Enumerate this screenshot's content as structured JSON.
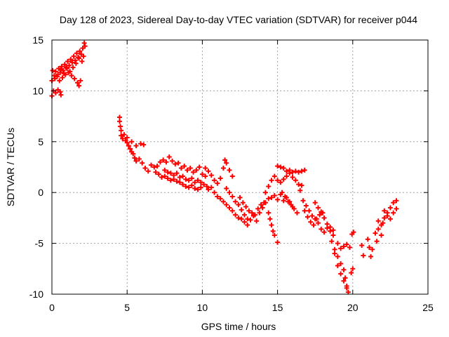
{
  "chart_data": {
    "type": "scatter",
    "title": "Day 128 of 2023, Sidereal Day-to-day VTEC variation (SDTVAR) for receiver p044",
    "xlabel": "GPS time / hours",
    "ylabel": "SDTVAR / TECUs",
    "xlim": [
      0,
      25
    ],
    "ylim": [
      -10,
      15
    ],
    "xticks": [
      0,
      5,
      10,
      15,
      20,
      25
    ],
    "yticks": [
      -10,
      -5,
      0,
      5,
      10,
      15
    ],
    "grid": true,
    "marker": "plus",
    "color": "#ff0000",
    "series": [
      {
        "name": "SDTVAR",
        "points": [
          [
            0.0,
            9.5
          ],
          [
            0.1,
            10.0
          ],
          [
            0.25,
            9.8
          ],
          [
            0.4,
            10.1
          ],
          [
            0.55,
            9.9
          ],
          [
            0.6,
            9.6
          ],
          [
            0.0,
            11.0
          ],
          [
            0.05,
            12.0
          ],
          [
            0.15,
            11.5
          ],
          [
            0.25,
            11.9
          ],
          [
            0.35,
            11.4
          ],
          [
            0.45,
            12.2
          ],
          [
            0.55,
            11.8
          ],
          [
            0.65,
            12.4
          ],
          [
            0.75,
            12.0
          ],
          [
            0.85,
            12.6
          ],
          [
            0.95,
            12.3
          ],
          [
            1.05,
            12.9
          ],
          [
            1.15,
            12.5
          ],
          [
            1.25,
            13.1
          ],
          [
            1.35,
            12.8
          ],
          [
            1.45,
            13.4
          ],
          [
            1.55,
            13.0
          ],
          [
            1.65,
            13.7
          ],
          [
            1.75,
            13.3
          ],
          [
            1.85,
            13.9
          ],
          [
            1.95,
            13.6
          ],
          [
            2.05,
            14.2
          ],
          [
            2.15,
            14.7
          ],
          [
            2.2,
            14.4
          ],
          [
            0.2,
            11.2
          ],
          [
            0.4,
            11.6
          ],
          [
            0.6,
            12.1
          ],
          [
            0.8,
            11.7
          ],
          [
            1.0,
            12.2
          ],
          [
            1.2,
            11.9
          ],
          [
            1.4,
            12.3
          ],
          [
            1.6,
            12.7
          ],
          [
            1.8,
            13.2
          ],
          [
            2.0,
            12.9
          ],
          [
            2.1,
            13.4
          ],
          [
            0.5,
            11.0
          ],
          [
            0.7,
            11.3
          ],
          [
            0.9,
            11.6
          ],
          [
            1.1,
            11.8
          ],
          [
            1.3,
            11.5
          ],
          [
            1.5,
            11.2
          ],
          [
            1.7,
            10.8
          ],
          [
            1.8,
            10.5
          ],
          [
            1.9,
            11.0
          ],
          [
            4.5,
            7.4
          ],
          [
            4.5,
            7.0
          ],
          [
            4.55,
            6.5
          ],
          [
            4.6,
            6.1
          ],
          [
            4.6,
            5.6
          ],
          [
            4.7,
            5.3
          ],
          [
            4.8,
            5.7
          ],
          [
            4.9,
            5.1
          ],
          [
            5.0,
            4.9
          ],
          [
            5.1,
            4.6
          ],
          [
            5.2,
            4.3
          ],
          [
            5.3,
            4.0
          ],
          [
            5.4,
            3.8
          ],
          [
            5.5,
            3.4
          ],
          [
            5.6,
            3.1
          ],
          [
            5.8,
            3.3
          ],
          [
            6.0,
            2.9
          ],
          [
            6.2,
            2.4
          ],
          [
            6.4,
            2.1
          ],
          [
            6.6,
            2.7
          ],
          [
            6.8,
            2.5
          ],
          [
            5.0,
            5.4
          ],
          [
            5.3,
            5.0
          ],
          [
            5.6,
            4.6
          ],
          [
            5.9,
            4.8
          ],
          [
            6.1,
            4.7
          ],
          [
            6.9,
            2.0
          ],
          [
            7.1,
            1.8
          ],
          [
            7.3,
            1.5
          ],
          [
            7.5,
            1.6
          ],
          [
            7.7,
            1.4
          ],
          [
            7.9,
            1.2
          ],
          [
            8.1,
            1.3
          ],
          [
            8.3,
            1.1
          ],
          [
            8.5,
            1.0
          ],
          [
            8.7,
            0.8
          ],
          [
            8.9,
            0.6
          ],
          [
            9.1,
            0.5
          ],
          [
            9.3,
            0.7
          ],
          [
            9.5,
            0.4
          ],
          [
            9.7,
            0.3
          ],
          [
            9.9,
            0.5
          ],
          [
            7.0,
            2.6
          ],
          [
            7.2,
            3.0
          ],
          [
            7.4,
            3.2
          ],
          [
            7.6,
            3.0
          ],
          [
            7.8,
            3.5
          ],
          [
            8.0,
            3.1
          ],
          [
            8.2,
            2.8
          ],
          [
            8.4,
            2.9
          ],
          [
            8.6,
            2.4
          ],
          [
            8.8,
            2.6
          ],
          [
            9.0,
            2.2
          ],
          [
            9.2,
            2.4
          ],
          [
            9.4,
            2.0
          ],
          [
            9.6,
            2.2
          ],
          [
            9.8,
            2.5
          ],
          [
            10.0,
            1.8
          ],
          [
            10.2,
            1.6
          ],
          [
            7.5,
            2.2
          ],
          [
            7.7,
            2.0
          ],
          [
            7.9,
            1.9
          ],
          [
            8.1,
            1.7
          ],
          [
            8.3,
            1.9
          ],
          [
            8.5,
            1.5
          ],
          [
            8.7,
            1.6
          ],
          [
            8.9,
            1.3
          ],
          [
            9.1,
            1.2
          ],
          [
            9.3,
            1.4
          ],
          [
            9.5,
            1.0
          ],
          [
            9.7,
            1.2
          ],
          [
            9.9,
            1.0
          ],
          [
            10.1,
            0.8
          ],
          [
            10.3,
            0.6
          ],
          [
            10.2,
            2.4
          ],
          [
            10.4,
            2.1
          ],
          [
            10.6,
            1.7
          ],
          [
            10.8,
            1.2
          ],
          [
            11.0,
            0.9
          ],
          [
            11.2,
            1.4
          ],
          [
            11.4,
            2.4
          ],
          [
            11.5,
            3.2
          ],
          [
            11.6,
            2.9
          ],
          [
            11.8,
            2.2
          ],
          [
            12.0,
            1.6
          ],
          [
            10.4,
            0.3
          ],
          [
            10.6,
            0.5
          ],
          [
            10.8,
            0.0
          ],
          [
            11.0,
            -0.4
          ],
          [
            11.2,
            -0.6
          ],
          [
            11.4,
            -0.9
          ],
          [
            11.6,
            -1.2
          ],
          [
            11.8,
            -1.5
          ],
          [
            12.0,
            -1.8
          ],
          [
            12.2,
            -2.2
          ],
          [
            12.4,
            -2.5
          ],
          [
            12.6,
            -2.6
          ],
          [
            12.8,
            -2.9
          ],
          [
            13.0,
            -3.2
          ],
          [
            11.6,
            0.4
          ],
          [
            11.8,
            0.0
          ],
          [
            12.0,
            -0.4
          ],
          [
            12.2,
            -0.9
          ],
          [
            12.4,
            -1.2
          ],
          [
            12.6,
            -1.7
          ],
          [
            12.8,
            -2.2
          ],
          [
            13.0,
            -2.6
          ],
          [
            13.2,
            -2.7
          ],
          [
            13.4,
            -2.3
          ],
          [
            12.5,
            -0.5
          ],
          [
            12.7,
            -1.0
          ],
          [
            12.9,
            -1.4
          ],
          [
            13.1,
            -1.8
          ],
          [
            13.3,
            -2.0
          ],
          [
            13.5,
            -2.2
          ],
          [
            13.7,
            -1.6
          ],
          [
            13.9,
            -1.2
          ],
          [
            14.1,
            -1.0
          ],
          [
            13.6,
            -2.8
          ],
          [
            13.8,
            -2.0
          ],
          [
            14.0,
            -1.5
          ],
          [
            14.2,
            -1.0
          ],
          [
            14.4,
            -0.6
          ],
          [
            14.6,
            -0.5
          ],
          [
            14.8,
            -0.3
          ],
          [
            15.0,
            -0.7
          ],
          [
            15.2,
            -0.2
          ],
          [
            15.4,
            -0.8
          ],
          [
            15.6,
            -0.5
          ],
          [
            15.8,
            -0.9
          ],
          [
            16.0,
            -1.4
          ],
          [
            14.4,
            -2.0
          ],
          [
            14.5,
            -2.6
          ],
          [
            14.6,
            -3.2
          ],
          [
            14.7,
            -3.8
          ],
          [
            14.8,
            -4.2
          ],
          [
            15.0,
            -4.9
          ],
          [
            14.2,
            0.0
          ],
          [
            14.4,
            0.6
          ],
          [
            14.6,
            1.2
          ],
          [
            14.8,
            1.6
          ],
          [
            15.0,
            1.2
          ],
          [
            15.2,
            1.0
          ],
          [
            15.4,
            1.3
          ],
          [
            15.6,
            1.6
          ],
          [
            15.8,
            1.9
          ],
          [
            16.0,
            1.5
          ],
          [
            16.2,
            1.2
          ],
          [
            16.4,
            0.8
          ],
          [
            16.6,
            0.7
          ],
          [
            15.0,
            2.6
          ],
          [
            15.2,
            2.5
          ],
          [
            15.4,
            2.4
          ],
          [
            15.6,
            2.1
          ],
          [
            15.8,
            2.2
          ],
          [
            16.0,
            2.0
          ],
          [
            16.2,
            2.1
          ],
          [
            16.4,
            2.0
          ],
          [
            16.6,
            2.1
          ],
          [
            16.8,
            2.2
          ],
          [
            15.3,
            0.0
          ],
          [
            15.5,
            -0.4
          ],
          [
            15.7,
            -0.9
          ],
          [
            15.9,
            -1.2
          ],
          [
            16.1,
            -1.6
          ],
          [
            16.3,
            -2.0
          ],
          [
            16.5,
            0.2
          ],
          [
            16.7,
            -0.8
          ],
          [
            16.9,
            -1.3
          ],
          [
            17.1,
            -1.8
          ],
          [
            17.3,
            -2.3
          ],
          [
            17.5,
            -2.6
          ],
          [
            17.7,
            -3.0
          ],
          [
            17.9,
            -3.6
          ],
          [
            18.1,
            -3.9
          ],
          [
            18.3,
            -3.5
          ],
          [
            18.5,
            -3.8
          ],
          [
            18.7,
            -4.2
          ],
          [
            16.8,
            -1.8
          ],
          [
            17.0,
            -2.4
          ],
          [
            17.2,
            -2.9
          ],
          [
            17.4,
            -3.2
          ],
          [
            17.6,
            -2.6
          ],
          [
            17.8,
            -2.2
          ],
          [
            18.0,
            -2.0
          ],
          [
            17.5,
            -1.0
          ],
          [
            17.7,
            -1.5
          ],
          [
            17.9,
            -1.9
          ],
          [
            18.1,
            -2.5
          ],
          [
            18.3,
            -3.1
          ],
          [
            18.5,
            -3.4
          ],
          [
            18.7,
            -3.7
          ],
          [
            18.6,
            -4.8
          ],
          [
            18.8,
            -5.6
          ],
          [
            19.0,
            -6.3
          ],
          [
            19.2,
            -7.0
          ],
          [
            19.4,
            -7.6
          ],
          [
            19.5,
            -8.4
          ],
          [
            19.6,
            -9.2
          ],
          [
            19.7,
            -9.8
          ],
          [
            18.8,
            -6.0
          ],
          [
            19.0,
            -7.2
          ],
          [
            19.2,
            -8.0
          ],
          [
            19.4,
            -8.7
          ],
          [
            19.6,
            -9.4
          ],
          [
            19.0,
            -5.0
          ],
          [
            19.2,
            -5.5
          ],
          [
            19.4,
            -5.3
          ],
          [
            19.6,
            -5.1
          ],
          [
            19.8,
            -5.4
          ],
          [
            19.9,
            -7.9
          ],
          [
            20.0,
            -7.5
          ],
          [
            19.95,
            -4.1
          ],
          [
            20.05,
            -3.9
          ],
          [
            20.6,
            -5.2
          ],
          [
            20.7,
            -6.2
          ],
          [
            21.0,
            -4.6
          ],
          [
            21.1,
            -5.4
          ],
          [
            21.2,
            -6.3
          ],
          [
            21.3,
            -5.6
          ],
          [
            21.5,
            -4.0
          ],
          [
            21.6,
            -4.8
          ],
          [
            21.7,
            -3.6
          ],
          [
            21.9,
            -4.2
          ],
          [
            22.0,
            -3.0
          ],
          [
            22.1,
            -2.5
          ],
          [
            22.3,
            -2.0
          ],
          [
            22.5,
            -1.5
          ],
          [
            22.7,
            -1.0
          ],
          [
            22.9,
            -0.8
          ],
          [
            21.7,
            -2.8
          ],
          [
            21.9,
            -3.2
          ],
          [
            22.1,
            -1.8
          ],
          [
            22.3,
            -2.3
          ],
          [
            22.5,
            -2.6
          ],
          [
            22.7,
            -2.0
          ],
          [
            22.9,
            -1.6
          ]
        ]
      }
    ]
  }
}
